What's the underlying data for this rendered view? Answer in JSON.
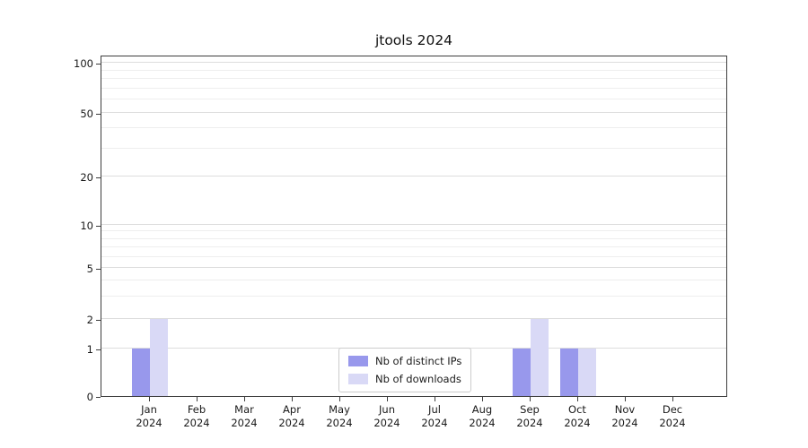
{
  "chart_data": {
    "type": "bar",
    "title": "jtools 2024",
    "categories": [
      "Jan",
      "Feb",
      "Mar",
      "Apr",
      "May",
      "Jun",
      "Jul",
      "Aug",
      "Sep",
      "Oct",
      "Nov",
      "Dec"
    ],
    "x_tick_year": "2024",
    "series": [
      {
        "name": "Nb of distinct IPs",
        "color": "#9898ec",
        "values": [
          1,
          0,
          0,
          0,
          0,
          0,
          0,
          0,
          1,
          1,
          0,
          0
        ]
      },
      {
        "name": "Nb of downloads",
        "color": "#d9d9f6",
        "values": [
          2,
          0,
          0,
          0,
          0,
          0,
          0,
          0,
          2,
          1,
          0,
          0
        ]
      }
    ],
    "y_axis": {
      "scale": "log-like",
      "ticks": [
        0,
        1,
        2,
        5,
        10,
        20,
        50,
        100
      ],
      "range": [
        0,
        110
      ]
    },
    "grid": true,
    "legend_position": "bottom-center"
  }
}
